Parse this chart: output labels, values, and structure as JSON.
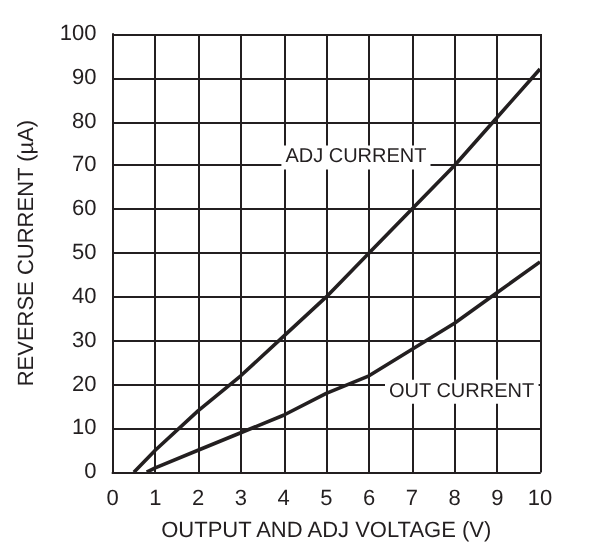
{
  "chart_data": {
    "type": "line",
    "xlabel": "OUTPUT AND ADJ VOLTAGE (V)",
    "ylabel": "REVERSE CURRENT (µA)",
    "xlim": [
      0,
      10
    ],
    "xticks": [
      0,
      1,
      2,
      3,
      4,
      5,
      6,
      7,
      8,
      9,
      10
    ],
    "ylim": [
      0,
      100
    ],
    "yticks": [
      0,
      10,
      20,
      30,
      40,
      50,
      60,
      70,
      80,
      90,
      100
    ],
    "grid": true,
    "marker": "none",
    "line_style": "solid",
    "series": [
      {
        "color": "#231f20",
        "x": [
          0.5,
          1,
          2,
          3,
          4,
          5,
          6,
          7,
          8,
          9,
          10
        ],
        "values": [
          0,
          5,
          14,
          22,
          31,
          40,
          50,
          60,
          70,
          81,
          92
        ]
      },
      {
        "color": "#231f20",
        "x": [
          0.8,
          1,
          2,
          3,
          4,
          5,
          6,
          7,
          8,
          9,
          10
        ],
        "values": [
          0,
          1,
          5,
          9,
          13,
          18,
          22,
          28,
          34,
          41,
          48
        ]
      }
    ],
    "annotations": [
      "ADJ CURRENT",
      "OUT CURRENT"
    ]
  }
}
